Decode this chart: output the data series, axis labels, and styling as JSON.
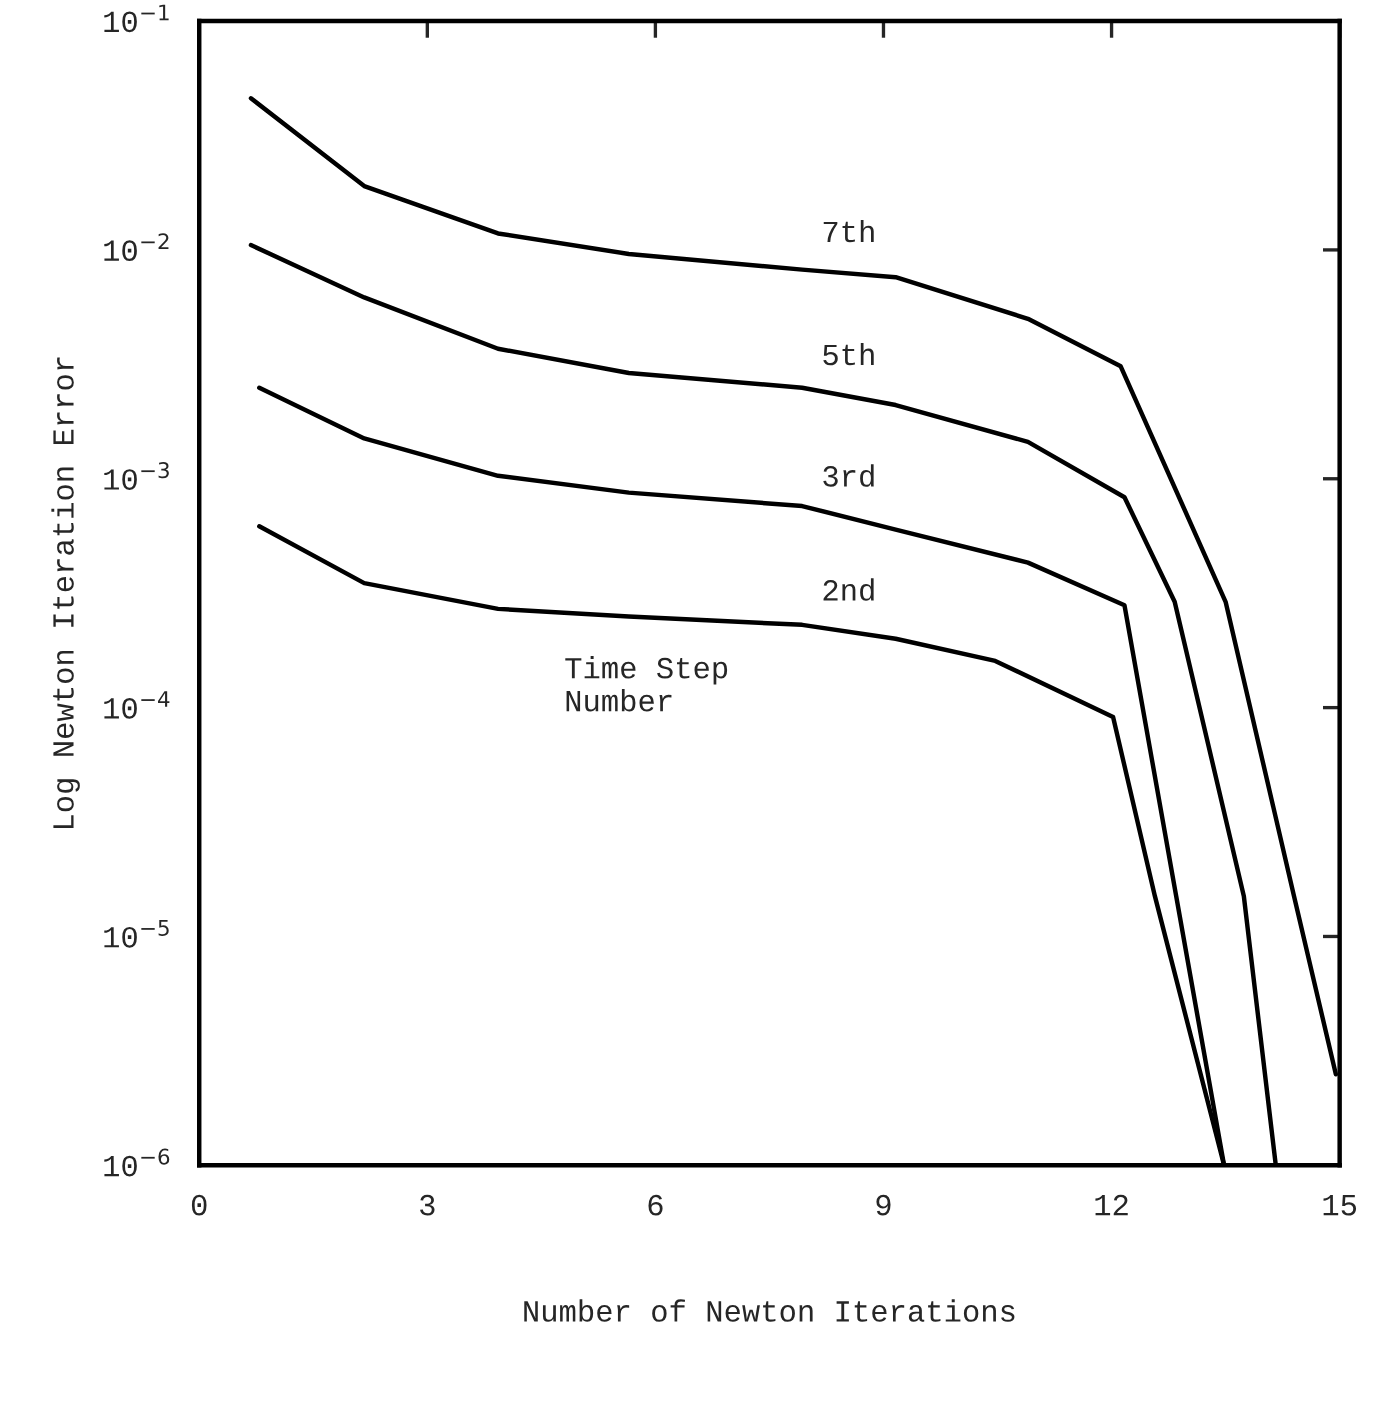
{
  "chart_data": {
    "type": "line",
    "xlabel": "Number of Newton Iterations",
    "ylabel": "Log Newton Iteration Error",
    "log": "y",
    "xlim": [
      0,
      15
    ],
    "xticks": [
      0,
      3,
      6,
      9,
      12,
      15
    ],
    "ylim": [
      1e-06,
      0.1
    ],
    "yticks": [
      {
        "value": 0.1,
        "label": "10$^{−1}$"
      },
      {
        "value": 0.01,
        "label": "10$^{−2}$"
      },
      {
        "value": 0.001,
        "label": "10$^{−3}$"
      },
      {
        "value": 0.0001,
        "label": "10$^{−4}$"
      },
      {
        "value": 1e-05,
        "label": "10$^{−5}$"
      },
      {
        "value": 1e-06,
        "label": "10$^{−6}$"
      }
    ],
    "grid": false,
    "legend": false,
    "marker": "none",
    "line_style": "solid",
    "annotations": [
      "Time Step\nNumber"
    ],
    "series": [
      {
        "name": "7th",
        "color": "#000000",
        "x": [
          0.68,
          2.17,
          3.93,
          5.65,
          7.93,
          9.16,
          10.9,
          12.12,
          13.5,
          14.4,
          14.95
        ],
        "values": [
          0.046,
          0.019,
          0.0118,
          0.0096,
          0.0082,
          0.0076,
          0.005,
          0.0031,
          0.00029,
          1.5e-05,
          2.5e-06
        ]
      },
      {
        "name": "5th",
        "color": "#000000",
        "x": [
          0.68,
          2.17,
          3.93,
          5.65,
          7.93,
          9.16,
          10.9,
          12.17,
          12.83,
          13.74,
          14.16
        ],
        "values": [
          0.0105,
          0.0062,
          0.0037,
          0.0029,
          0.0025,
          0.0021,
          0.00145,
          0.00083,
          0.00029,
          1.5e-05,
          1e-06
        ]
      },
      {
        "name": "3rd",
        "color": "#000000",
        "x": [
          0.79,
          2.17,
          3.93,
          5.65,
          7.93,
          9.16,
          10.9,
          12.17,
          12.85,
          13.48
        ],
        "values": [
          0.0025,
          0.0015,
          0.00103,
          0.00087,
          0.00076,
          0.0006,
          0.00043,
          0.00028,
          1.5e-05,
          1e-06
        ]
      },
      {
        "name": "2nd",
        "color": "#000000",
        "x": [
          0.79,
          2.17,
          3.93,
          5.65,
          7.93,
          9.16,
          10.47,
          12.02,
          12.57,
          13.48
        ],
        "values": [
          0.00062,
          0.00035,
          0.00027,
          0.00025,
          0.00023,
          0.0002,
          0.00016,
          9.1e-05,
          1.5e-05,
          1e-06
        ]
      }
    ]
  }
}
